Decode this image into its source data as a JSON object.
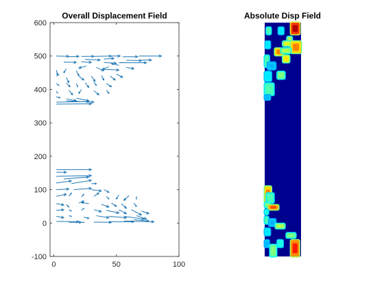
{
  "colors": {
    "quiver": "#1f77b4",
    "axes": "#262626",
    "background": "#ffffff",
    "colormap": "jet"
  },
  "chart_data": [
    {
      "type": "quiver",
      "title": "Overall Displacement Field",
      "xlim": [
        -3,
        100
      ],
      "ylim": [
        -100,
        600
      ],
      "xticks": [
        0,
        50,
        100
      ],
      "xtick_labels": [
        "0",
        "50",
        "100"
      ],
      "yticks": [
        -100,
        0,
        100,
        200,
        300,
        400,
        500,
        600
      ],
      "ytick_labels": [
        "-100",
        "0",
        "100",
        "200",
        "300",
        "400",
        "500",
        "600"
      ],
      "grid": false,
      "vectors": [
        {
          "x": 2,
          "y": 500,
          "u": 10,
          "v": -1
        },
        {
          "x": 12,
          "y": 498,
          "u": 8,
          "v": 1
        },
        {
          "x": 22,
          "y": 499,
          "u": 10,
          "v": 0
        },
        {
          "x": 32,
          "y": 499,
          "u": 14,
          "v": 1
        },
        {
          "x": 45,
          "y": 500,
          "u": 8,
          "v": 0
        },
        {
          "x": 55,
          "y": 498,
          "u": 12,
          "v": 0
        },
        {
          "x": 68,
          "y": 500,
          "u": 18,
          "v": 0
        },
        {
          "x": 25,
          "y": 490,
          "u": 12,
          "v": -2
        },
        {
          "x": 40,
          "y": 491,
          "u": 8,
          "v": 2
        },
        {
          "x": 58,
          "y": 487,
          "u": 12,
          "v": -1
        },
        {
          "x": 70,
          "y": 488,
          "u": 8,
          "v": 0
        },
        {
          "x": 8,
          "y": 482,
          "u": 10,
          "v": -1
        },
        {
          "x": 22,
          "y": 483,
          "u": 8,
          "v": -2
        },
        {
          "x": 40,
          "y": 481,
          "u": 10,
          "v": -3
        },
        {
          "x": 52,
          "y": 480,
          "u": 22,
          "v": 0
        },
        {
          "x": 2,
          "y": 458,
          "u": 1,
          "v": -14
        },
        {
          "x": 10,
          "y": 462,
          "u": -2,
          "v": -12
        },
        {
          "x": 18,
          "y": 456,
          "u": 2,
          "v": -15
        },
        {
          "x": 26,
          "y": 470,
          "u": -6,
          "v": -6
        },
        {
          "x": 34,
          "y": 466,
          "u": 6,
          "v": -10
        },
        {
          "x": 44,
          "y": 468,
          "u": -5,
          "v": -8
        },
        {
          "x": 52,
          "y": 472,
          "u": -6,
          "v": 6
        },
        {
          "x": 58,
          "y": 466,
          "u": 6,
          "v": -4
        },
        {
          "x": 40,
          "y": 460,
          "u": 12,
          "v": -2
        },
        {
          "x": 2,
          "y": 440,
          "u": 2,
          "v": 4
        },
        {
          "x": 10,
          "y": 436,
          "u": 2,
          "v": -15
        },
        {
          "x": 20,
          "y": 440,
          "u": 4,
          "v": -12
        },
        {
          "x": 30,
          "y": 440,
          "u": 3,
          "v": -16
        },
        {
          "x": 38,
          "y": 442,
          "u": 2,
          "v": -14
        },
        {
          "x": 45,
          "y": 440,
          "u": 4,
          "v": -12
        },
        {
          "x": 50,
          "y": 446,
          "u": 5,
          "v": -10
        },
        {
          "x": 2,
          "y": 418,
          "u": 2,
          "v": -6
        },
        {
          "x": 10,
          "y": 420,
          "u": 3,
          "v": -12
        },
        {
          "x": 18,
          "y": 418,
          "u": 1,
          "v": -10
        },
        {
          "x": 25,
          "y": 420,
          "u": 3,
          "v": -14
        },
        {
          "x": 32,
          "y": 422,
          "u": 2,
          "v": -10
        },
        {
          "x": 42,
          "y": 418,
          "u": 4,
          "v": -10
        },
        {
          "x": 2,
          "y": 395,
          "u": 1,
          "v": -6
        },
        {
          "x": 12,
          "y": 398,
          "u": 3,
          "v": -14
        },
        {
          "x": 22,
          "y": 400,
          "u": -2,
          "v": -12
        },
        {
          "x": 32,
          "y": 396,
          "u": 4,
          "v": -12
        },
        {
          "x": 42,
          "y": 398,
          "u": 2,
          "v": -10
        },
        {
          "x": 2,
          "y": 378,
          "u": 3,
          "v": -3
        },
        {
          "x": 10,
          "y": 372,
          "u": 8,
          "v": -6
        },
        {
          "x": 18,
          "y": 374,
          "u": 10,
          "v": -8
        },
        {
          "x": 2,
          "y": 362,
          "u": 26,
          "v": 2
        },
        {
          "x": 2,
          "y": 356,
          "u": 28,
          "v": 1
        },
        {
          "x": 10,
          "y": 366,
          "u": 22,
          "v": -4
        },
        {
          "x": 2,
          "y": 160,
          "u": 28,
          "v": 0
        },
        {
          "x": 2,
          "y": 152,
          "u": 8,
          "v": 0
        },
        {
          "x": 2,
          "y": 140,
          "u": 28,
          "v": 2
        },
        {
          "x": 8,
          "y": 132,
          "u": 20,
          "v": 6
        },
        {
          "x": 2,
          "y": 120,
          "u": 12,
          "v": 6
        },
        {
          "x": 14,
          "y": 118,
          "u": 16,
          "v": 10
        },
        {
          "x": 30,
          "y": 118,
          "u": 4,
          "v": 0
        },
        {
          "x": 2,
          "y": 100,
          "u": 10,
          "v": 2
        },
        {
          "x": 16,
          "y": 100,
          "u": 14,
          "v": 4
        },
        {
          "x": 30,
          "y": 100,
          "u": 8,
          "v": -4
        },
        {
          "x": 40,
          "y": 100,
          "u": 4,
          "v": -8
        },
        {
          "x": 2,
          "y": 80,
          "u": 8,
          "v": 6
        },
        {
          "x": 12,
          "y": 80,
          "u": 2,
          "v": 10
        },
        {
          "x": 22,
          "y": 78,
          "u": 2,
          "v": 8
        },
        {
          "x": 32,
          "y": 80,
          "u": 4,
          "v": 10
        },
        {
          "x": 42,
          "y": 80,
          "u": 2,
          "v": -8
        },
        {
          "x": 52,
          "y": 84,
          "u": -2,
          "v": -12
        },
        {
          "x": 60,
          "y": 82,
          "u": -4,
          "v": -14
        },
        {
          "x": 66,
          "y": 80,
          "u": 0,
          "v": -8
        },
        {
          "x": 2,
          "y": 58,
          "u": 6,
          "v": -4
        },
        {
          "x": 10,
          "y": 56,
          "u": 2,
          "v": -8
        },
        {
          "x": 20,
          "y": 60,
          "u": 4,
          "v": 6
        },
        {
          "x": 28,
          "y": 58,
          "u": -6,
          "v": 4
        },
        {
          "x": 38,
          "y": 56,
          "u": 6,
          "v": -8
        },
        {
          "x": 46,
          "y": 60,
          "u": 4,
          "v": -10
        },
        {
          "x": 54,
          "y": 58,
          "u": 4,
          "v": -14
        },
        {
          "x": 64,
          "y": 60,
          "u": 2,
          "v": -10
        },
        {
          "x": 2,
          "y": 38,
          "u": 6,
          "v": 2
        },
        {
          "x": 12,
          "y": 40,
          "u": 2,
          "v": -4
        },
        {
          "x": 22,
          "y": 38,
          "u": 2,
          "v": 6
        },
        {
          "x": 32,
          "y": 40,
          "u": 6,
          "v": -6
        },
        {
          "x": 42,
          "y": 38,
          "u": 10,
          "v": -8
        },
        {
          "x": 52,
          "y": 40,
          "u": 6,
          "v": -12
        },
        {
          "x": 62,
          "y": 40,
          "u": 8,
          "v": -16
        },
        {
          "x": 70,
          "y": 36,
          "u": 6,
          "v": -8
        },
        {
          "x": 2,
          "y": 20,
          "u": 6,
          "v": -4
        },
        {
          "x": 12,
          "y": 22,
          "u": 2,
          "v": -2
        },
        {
          "x": 24,
          "y": 18,
          "u": 4,
          "v": -4
        },
        {
          "x": 34,
          "y": 22,
          "u": 10,
          "v": -6
        },
        {
          "x": 44,
          "y": 20,
          "u": 14,
          "v": -4
        },
        {
          "x": 56,
          "y": 20,
          "u": 16,
          "v": -8
        },
        {
          "x": 66,
          "y": 22,
          "u": 8,
          "v": -10
        },
        {
          "x": 2,
          "y": 5,
          "u": 18,
          "v": -1
        },
        {
          "x": 12,
          "y": 2,
          "u": 10,
          "v": 0
        },
        {
          "x": 22,
          "y": 2,
          "u": 2,
          "v": 0
        },
        {
          "x": 32,
          "y": 3,
          "u": 14,
          "v": -1
        },
        {
          "x": 44,
          "y": 4,
          "u": 20,
          "v": 0
        },
        {
          "x": 56,
          "y": 6,
          "u": 24,
          "v": -2
        },
        {
          "x": 64,
          "y": 10,
          "u": 12,
          "v": -4
        }
      ]
    },
    {
      "type": "heatmap",
      "title": "Absolute Disp Field",
      "colormap": "jet",
      "value_range": [
        0,
        1
      ],
      "background_value": 0,
      "blobs": [
        {
          "x0": 0.72,
          "x1": 0.96,
          "y0": 0.0,
          "y1": 0.05,
          "v": 0.95
        },
        {
          "x0": 0.05,
          "x1": 0.17,
          "y0": 0.02,
          "y1": 0.05,
          "v": 0.45
        },
        {
          "x0": 0.38,
          "x1": 0.52,
          "y0": 0.02,
          "y1": 0.05,
          "v": 0.35
        },
        {
          "x0": 0.62,
          "x1": 0.75,
          "y0": 0.06,
          "y1": 0.08,
          "v": 0.55
        },
        {
          "x0": 0.5,
          "x1": 0.75,
          "y0": 0.08,
          "y1": 0.1,
          "v": 0.6
        },
        {
          "x0": 0.72,
          "x1": 1.0,
          "y0": 0.08,
          "y1": 0.13,
          "v": 0.75
        },
        {
          "x0": 0.02,
          "x1": 0.15,
          "y0": 0.08,
          "y1": 0.11,
          "v": 0.35
        },
        {
          "x0": 0.28,
          "x1": 0.52,
          "y0": 0.11,
          "y1": 0.14,
          "v": 0.75
        },
        {
          "x0": 0.45,
          "x1": 0.72,
          "y0": 0.11,
          "y1": 0.13,
          "v": 0.55
        },
        {
          "x0": 0.5,
          "x1": 0.68,
          "y0": 0.14,
          "y1": 0.17,
          "v": 0.65
        },
        {
          "x0": 0.0,
          "x1": 0.12,
          "y0": 0.14,
          "y1": 0.19,
          "v": 0.45
        },
        {
          "x0": 0.08,
          "x1": 0.3,
          "y0": 0.17,
          "y1": 0.2,
          "v": 0.3
        },
        {
          "x0": 0.0,
          "x1": 0.18,
          "y0": 0.21,
          "y1": 0.25,
          "v": 0.35
        },
        {
          "x0": 0.35,
          "x1": 0.55,
          "y0": 0.21,
          "y1": 0.24,
          "v": 0.5
        },
        {
          "x0": 0.0,
          "x1": 0.25,
          "y0": 0.26,
          "y1": 0.31,
          "v": 0.45
        },
        {
          "x0": 0.0,
          "x1": 0.15,
          "y0": 0.31,
          "y1": 0.33,
          "v": 0.3
        },
        {
          "x0": 0.0,
          "x1": 0.18,
          "y0": 0.7,
          "y1": 0.77,
          "v": 0.75
        },
        {
          "x0": 0.05,
          "x1": 0.25,
          "y0": 0.73,
          "y1": 0.77,
          "v": 0.45
        },
        {
          "x0": 0.0,
          "x1": 0.15,
          "y0": 0.77,
          "y1": 0.79,
          "v": 0.5
        },
        {
          "x0": 0.1,
          "x1": 0.38,
          "y0": 0.78,
          "y1": 0.8,
          "v": 0.8
        },
        {
          "x0": 0.0,
          "x1": 0.1,
          "y0": 0.8,
          "y1": 0.82,
          "v": 0.4
        },
        {
          "x0": 0.0,
          "x1": 0.1,
          "y0": 0.83,
          "y1": 0.86,
          "v": 0.45
        },
        {
          "x0": 0.12,
          "x1": 0.3,
          "y0": 0.84,
          "y1": 0.87,
          "v": 0.3
        },
        {
          "x0": 0.3,
          "x1": 0.55,
          "y0": 0.86,
          "y1": 0.88,
          "v": 0.55
        },
        {
          "x0": 0.0,
          "x1": 0.15,
          "y0": 0.88,
          "y1": 0.91,
          "v": 0.35
        },
        {
          "x0": 0.6,
          "x1": 0.85,
          "y0": 0.9,
          "y1": 0.92,
          "v": 0.5
        },
        {
          "x0": 0.0,
          "x1": 0.12,
          "y0": 0.93,
          "y1": 0.96,
          "v": 0.3
        },
        {
          "x0": 0.35,
          "x1": 0.5,
          "y0": 0.93,
          "y1": 0.96,
          "v": 0.4
        },
        {
          "x0": 0.15,
          "x1": 0.32,
          "y0": 0.95,
          "y1": 1.0,
          "v": 0.5
        },
        {
          "x0": 0.72,
          "x1": 0.95,
          "y0": 0.93,
          "y1": 1.0,
          "v": 0.85
        }
      ]
    }
  ]
}
